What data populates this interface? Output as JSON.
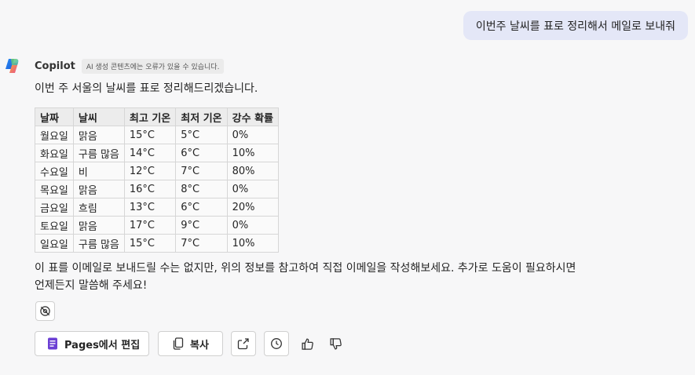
{
  "user_message": "이번주 날씨를 표로 정리해서 메일로 보내줘",
  "bot": {
    "name": "Copilot",
    "disclaimer": "AI 생성 콘텐츠에는 오류가 있을 수 있습니다.",
    "intro": "이번 주 서울의 날씨를 표로 정리해드리겠습니다.",
    "table": {
      "headers": [
        "날짜",
        "날씨",
        "최고 기온",
        "최저 기온",
        "강수 확률"
      ],
      "rows": [
        [
          "월요일",
          "맑음",
          "15°C",
          "5°C",
          "0%"
        ],
        [
          "화요일",
          "구름 많음",
          "14°C",
          "6°C",
          "10%"
        ],
        [
          "수요일",
          "비",
          "12°C",
          "7°C",
          "80%"
        ],
        [
          "목요일",
          "맑음",
          "16°C",
          "8°C",
          "0%"
        ],
        [
          "금요일",
          "흐림",
          "13°C",
          "6°C",
          "20%"
        ],
        [
          "토요일",
          "맑음",
          "17°C",
          "9°C",
          "0%"
        ],
        [
          "일요일",
          "구름 많음",
          "15°C",
          "7°C",
          "10%"
        ]
      ]
    },
    "outro": "이 표를 이메일로 보내드릴 수는 없지만, 위의 정보를 참고하여 직접 이메일을 작성해보세요. 추가로 도움이 필요하시면 언제든지 말씀해 주세요!"
  },
  "actions": {
    "pages_label": "Pages에서 편집",
    "copy_label": "복사"
  },
  "colors": {
    "user_bubble": "#e4e7f7",
    "pages_icon": "#6b3fd4",
    "background": "#f7f7f8"
  }
}
